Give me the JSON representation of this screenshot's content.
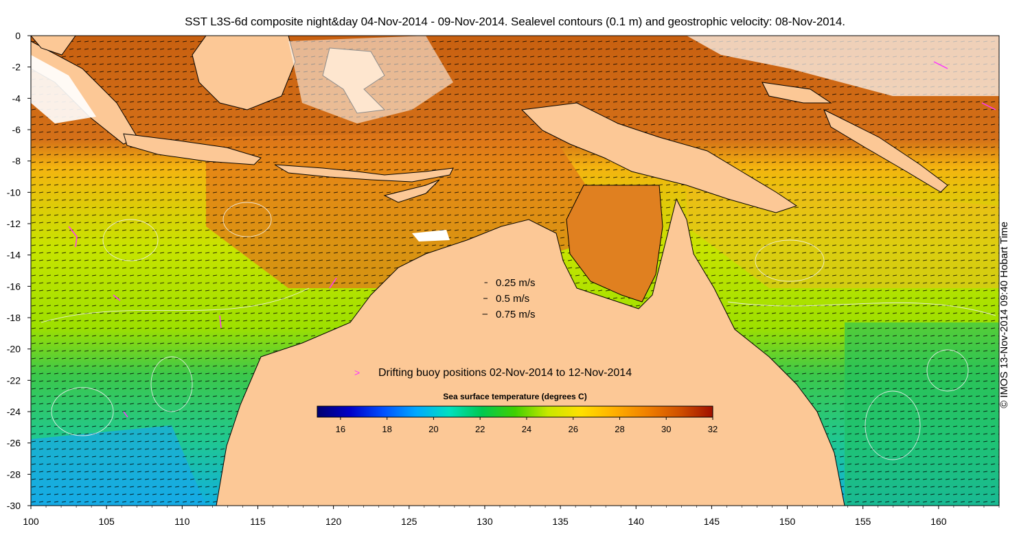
{
  "title": "SST L3S-6d composite night&day 04-Nov-2014 - 09-Nov-2014. Sealevel contours (0.1 m) and geostrophic velocity: 08-Nov-2014.",
  "credit": "© IMOS 13-Nov-2014 09:40 Hobart Time",
  "axes": {
    "x_ticks": [
      "100",
      "105",
      "110",
      "115",
      "120",
      "125",
      "130",
      "135",
      "140",
      "145",
      "150",
      "155",
      "160"
    ],
    "y_ticks": [
      "0",
      "-2",
      "-4",
      "-6",
      "-8",
      "-10",
      "-12",
      "-14",
      "-16",
      "-18",
      "-20",
      "-22",
      "-24",
      "-26",
      "-28",
      "-30"
    ]
  },
  "velocity_legend": [
    {
      "label": "0.25 m/s",
      "speed": 0.25
    },
    {
      "label": "0.5 m/s",
      "speed": 0.5
    },
    {
      "label": "0.75 m/s",
      "speed": 0.75
    }
  ],
  "buoy_legend": {
    "label": "Drifting buoy positions 02-Nov-2014 to 12-Nov-2014",
    "color": "#ff33ff"
  },
  "colorbar": {
    "title": "Sea surface temperature (degrees C)",
    "ticks": [
      "16",
      "18",
      "20",
      "22",
      "24",
      "26",
      "28",
      "30",
      "32"
    ],
    "min": 15,
    "max": 32,
    "stops": [
      "#000070",
      "#0000c8",
      "#0050ff",
      "#00a8ff",
      "#00e0c0",
      "#00c850",
      "#40d000",
      "#c8e800",
      "#ffe000",
      "#ffb000",
      "#f08000",
      "#d05000",
      "#a01000"
    ]
  },
  "colors": {
    "land": "#fcc896",
    "cloud": "#ffffff",
    "coast": "#000000",
    "contour": "#e8e8e8"
  }
}
